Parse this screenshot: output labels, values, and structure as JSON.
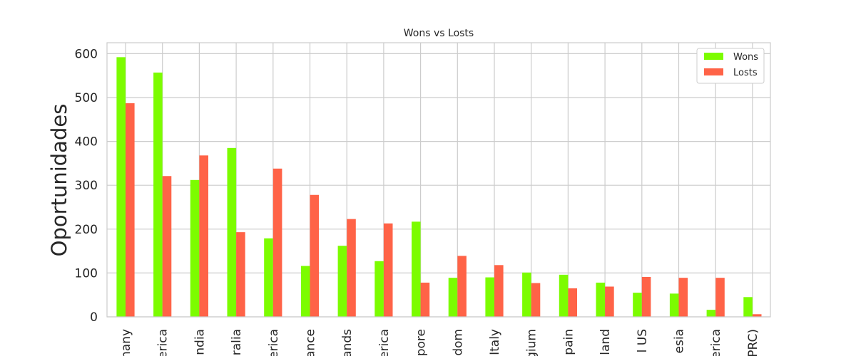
{
  "chart_data": {
    "type": "bar",
    "title": "Wons vs Losts",
    "xlabel": "",
    "ylabel": "Oportunidades",
    "ylim": [
      0,
      625
    ],
    "yticks": [
      0,
      100,
      200,
      300,
      400,
      500,
      600
    ],
    "grid": true,
    "legend_position": "top-right",
    "categories": [
      "many",
      "erica",
      "ndia",
      "ralia",
      "erica",
      "ance",
      "ands",
      "erica",
      "pore",
      "dom",
      "Italy",
      "gium",
      "pain",
      "land",
      "l US",
      "esia",
      "erica",
      "PRC)"
    ],
    "series": [
      {
        "name": "Wons",
        "color": "#7cfc00",
        "values": [
          592,
          557,
          312,
          385,
          179,
          116,
          162,
          127,
          217,
          89,
          90,
          101,
          96,
          78,
          55,
          53,
          16,
          45
        ]
      },
      {
        "name": "Losts",
        "color": "#ff6347",
        "values": [
          487,
          321,
          368,
          193,
          338,
          278,
          223,
          213,
          78,
          139,
          118,
          77,
          65,
          69,
          91,
          89,
          89,
          6
        ]
      }
    ]
  }
}
